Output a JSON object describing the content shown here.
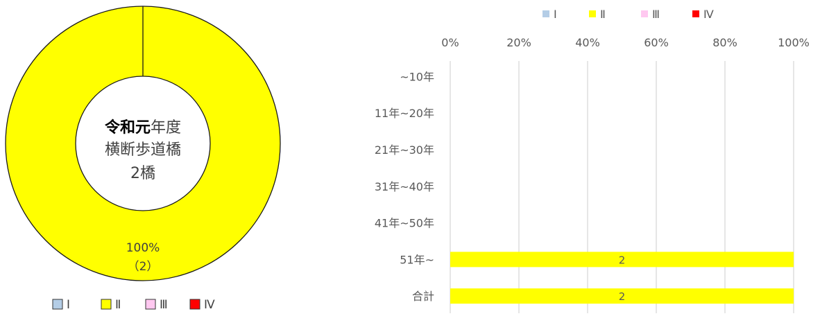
{
  "chart_data": [
    {
      "type": "pie",
      "variant": "donut",
      "center_text": [
        "令和元年度",
        "横断歩道橋",
        "2橋"
      ],
      "categories": [
        "Ⅰ",
        "Ⅱ",
        "Ⅲ",
        "Ⅳ"
      ],
      "values": [
        0,
        2,
        0,
        0
      ],
      "colors": [
        "#b4cde6",
        "#ffff00",
        "#ffc8f0",
        "#ff0000"
      ],
      "data_label": {
        "percent": "100%",
        "count": "（2）"
      },
      "legend_position": "bottom"
    },
    {
      "type": "bar",
      "orientation": "horizontal",
      "stacked": "percent",
      "categories": [
        "~10年",
        "11年~20年",
        "21年~30年",
        "31年~40年",
        "41年~50年",
        "51年~",
        "合計"
      ],
      "series": [
        {
          "name": "Ⅰ",
          "color": "#b4cde6",
          "values": [
            0,
            0,
            0,
            0,
            0,
            0,
            0
          ]
        },
        {
          "name": "Ⅱ",
          "color": "#ffff00",
          "values": [
            0,
            0,
            0,
            0,
            0,
            2,
            2
          ]
        },
        {
          "name": "Ⅲ",
          "color": "#ffc8f0",
          "values": [
            0,
            0,
            0,
            0,
            0,
            0,
            0
          ]
        },
        {
          "name": "Ⅳ",
          "color": "#ff0000",
          "values": [
            0,
            0,
            0,
            0,
            0,
            0,
            0
          ]
        }
      ],
      "x_ticks": [
        "0%",
        "20%",
        "40%",
        "60%",
        "80%",
        "100%"
      ],
      "xlim": [
        0,
        100
      ],
      "grid": true,
      "legend_position": "top"
    }
  ]
}
